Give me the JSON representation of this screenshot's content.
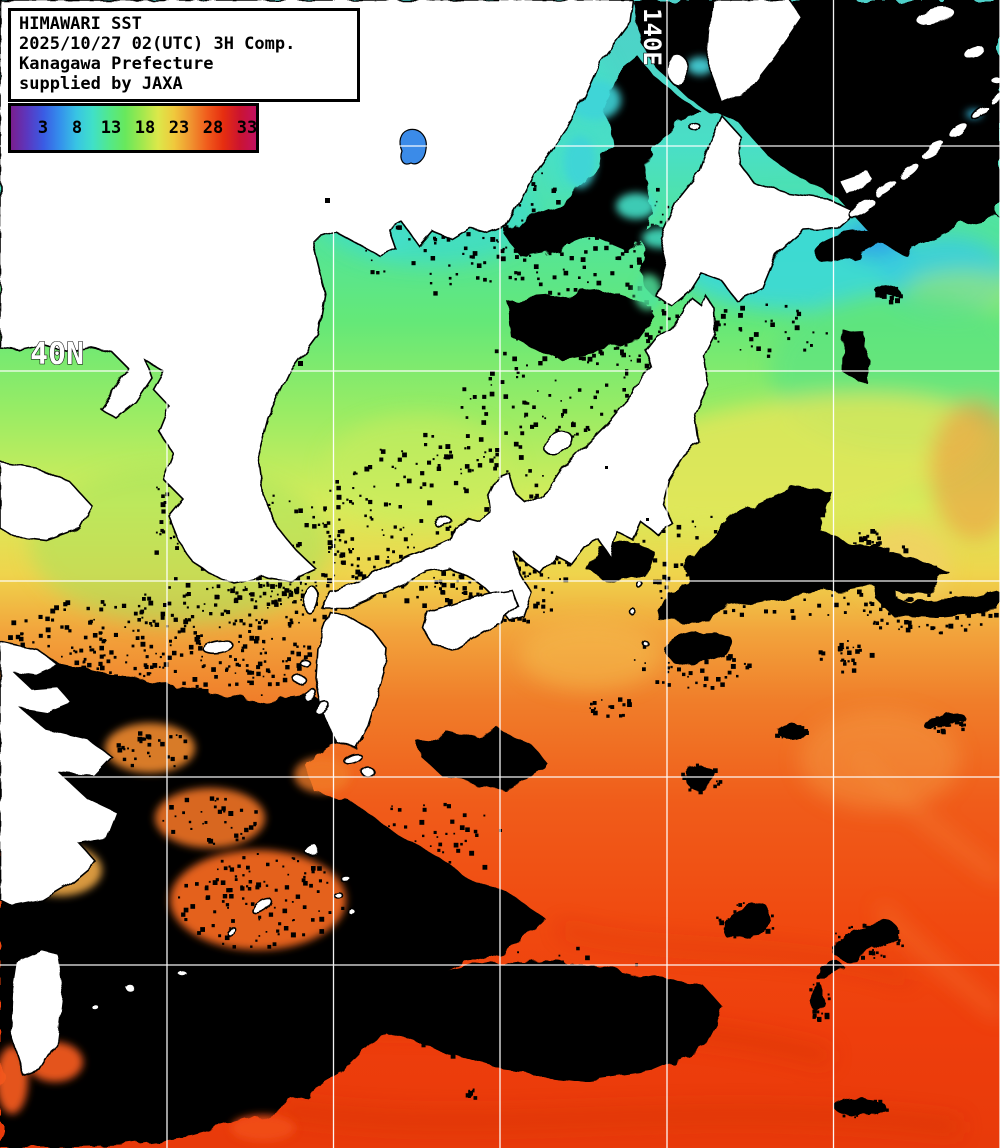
{
  "title_box": {
    "lines": [
      "HIMAWARI SST",
      "2025/10/27 02(UTC) 3H Comp.",
      "Kanagawa Prefecture",
      "supplied by JAXA"
    ]
  },
  "colorbar": {
    "tick_labels": [
      "3",
      "8",
      "13",
      "18",
      "23",
      "28",
      "33"
    ],
    "gradient_stops": [
      "#7A1E8E",
      "#5A38C0",
      "#3A5CE4",
      "#3490EC",
      "#38C4E4",
      "#40E0C8",
      "#52E88C",
      "#68E85C",
      "#A0E84E",
      "#DCE84A",
      "#F0C83C",
      "#F09430",
      "#F05C1C",
      "#E62E10",
      "#CC1430",
      "#C01060"
    ]
  },
  "grid_labels": {
    "meridian": "140E",
    "parallel": "40N"
  },
  "palette": {
    "land": "#FFFFFF",
    "cloud": "#000000",
    "grid_line": "#FFFFFF",
    "coastline": "#000000",
    "lake": "#3B8BE8",
    "sea_cold": "#40E0C4",
    "sea_warm": "#EE3E0C"
  }
}
